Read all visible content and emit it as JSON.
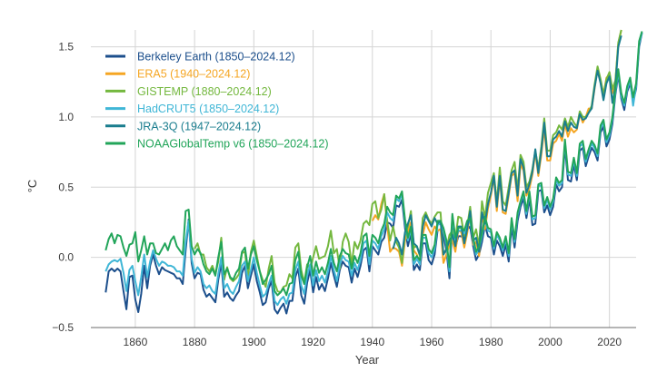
{
  "chart_data": {
    "type": "line",
    "xlabel": "Year",
    "ylabel": "°C",
    "xlim": [
      1845,
      2029
    ],
    "ylim": [
      -0.5,
      1.62
    ],
    "xticks": [
      1860,
      1880,
      1900,
      1920,
      1940,
      1960,
      1980,
      2000,
      2020
    ],
    "yticks": [
      -0.5,
      0.0,
      0.5,
      1.0,
      1.5
    ],
    "ytick_labels": [
      "−0.5",
      "0.0",
      "0.5",
      "1.0",
      "1.5"
    ],
    "grid": "vertical and horizontal",
    "legend": "top-left",
    "series": [
      {
        "name": "Berkeley Earth (1850–2024.12)",
        "color": "#1c4f8c",
        "start": 1850,
        "values": [
          -0.25,
          -0.1,
          -0.08,
          -0.1,
          -0.08,
          -0.1,
          -0.24,
          -0.37,
          -0.14,
          -0.13,
          -0.3,
          -0.39,
          -0.26,
          -0.06,
          -0.22,
          -0.06,
          0.02,
          -0.06,
          -0.12,
          -0.07,
          -0.09,
          -0.1,
          -0.11,
          -0.12,
          -0.15,
          -0.15,
          -0.19,
          0.05,
          0.27,
          -0.04,
          -0.15,
          -0.11,
          -0.12,
          -0.23,
          -0.28,
          -0.26,
          -0.29,
          -0.32,
          -0.16,
          -0.04,
          -0.28,
          -0.25,
          -0.29,
          -0.31,
          -0.27,
          -0.24,
          -0.11,
          -0.06,
          -0.22,
          -0.13,
          -0.05,
          -0.17,
          -0.25,
          -0.34,
          -0.32,
          -0.22,
          -0.17,
          -0.37,
          -0.4,
          -0.36,
          -0.33,
          -0.4,
          -0.31,
          -0.31,
          -0.14,
          -0.08,
          -0.27,
          -0.33,
          -0.18,
          -0.09,
          -0.25,
          -0.14,
          -0.23,
          -0.19,
          -0.24,
          -0.15,
          -0.04,
          -0.13,
          -0.21,
          -0.09,
          -0.03,
          -0.06,
          -0.07,
          -0.18,
          -0.08,
          -0.14,
          -0.06,
          0.05,
          0.07,
          -0.1,
          0.08,
          0.05,
          0.02,
          0.11,
          0.14,
          0.25,
          0.24,
          0.21,
          0.37,
          0.36,
          0.41,
          0.21,
          0.08,
          0.17,
          -0.09,
          -0.05,
          -0.09,
          0.1,
          0.1,
          -0.02,
          -0.05,
          0.02,
          0.19,
          0.2,
          0.15,
          0.05,
          -0.15,
          0.25,
          0.07,
          0.15,
          0.15,
          0.13,
          0.2,
          0.22,
          0.08,
          -0.02,
          0.02,
          0.11,
          0.23,
          0.15,
          0.14,
          0.02,
          0.12,
          0.08,
          0.01,
          0.09,
          -0.03,
          0.22,
          0.07,
          0.26,
          0.36,
          0.42,
          0.28,
          0.42,
          0.23,
          0.24,
          0.47,
          0.48,
          0.32,
          0.37,
          0.3,
          0.36,
          0.52,
          0.47,
          0.5,
          0.79,
          0.55,
          0.54,
          0.66,
          0.55,
          0.76,
          0.78,
          0.65,
          0.72,
          0.78,
          0.75,
          0.69,
          0.89,
          0.93,
          0.79,
          0.84,
          0.95,
          1.16,
          1.3,
          1.13,
          1.05,
          1.18,
          1.24,
          1.11,
          1.2,
          1.5,
          1.6
        ]
      },
      {
        "name": "ERA5 (1940–2024.12)",
        "color": "#f5a623",
        "start": 1940,
        "values": [
          0.26,
          0.3,
          0.27,
          0.38,
          0.45,
          0.23,
          0.04,
          0.07,
          0.06,
          0.04,
          -0.06,
          0.12,
          0.18,
          0.25,
          0.05,
          0.02,
          -0.05,
          0.16,
          0.25,
          0.2,
          0.16,
          0.22,
          0.19,
          0.2,
          -0.04,
          0.02,
          0.09,
          0.12,
          0.04,
          0.19,
          0.18,
          0.07,
          0.17,
          0.31,
          0.09,
          0.11,
          0.01,
          0.3,
          0.2,
          0.35,
          0.44,
          0.57,
          0.33,
          0.56,
          0.32,
          0.31,
          0.44,
          0.58,
          0.6,
          0.4,
          0.66,
          0.62,
          0.44,
          0.49,
          0.59,
          0.75,
          0.58,
          0.73,
          0.92,
          0.69,
          0.69,
          0.81,
          0.83,
          0.88,
          0.83,
          0.95,
          0.86,
          0.92,
          0.89,
          0.91,
          1.02,
          0.96,
          1.0,
          1.06,
          1.06,
          1.2,
          1.35,
          1.26,
          1.16,
          1.28,
          1.3,
          1.17,
          1.25,
          1.52,
          1.62
        ]
      },
      {
        "name": "GISTEMP (1880–2024.12)",
        "color": "#74b83f",
        "start": 1880,
        "values": [
          0.06,
          0.1,
          0.02,
          0.02,
          -0.07,
          -0.1,
          -0.06,
          -0.12,
          -0.03,
          0.14,
          -0.16,
          -0.07,
          -0.15,
          -0.17,
          -0.15,
          -0.12,
          0.03,
          0.04,
          -0.15,
          0.04,
          0.12,
          0.01,
          -0.1,
          -0.16,
          -0.21,
          -0.08,
          0.01,
          -0.18,
          -0.24,
          -0.25,
          -0.21,
          -0.2,
          -0.12,
          -0.15,
          0.07,
          0.1,
          -0.09,
          -0.18,
          -0.05,
          -0.08,
          0.0,
          0.08,
          -0.01,
          0.0,
          0.01,
          0.08,
          0.19,
          0.03,
          0.06,
          -0.08,
          0.11,
          0.17,
          0.11,
          -0.05,
          0.11,
          0.06,
          0.12,
          0.24,
          0.26,
          0.23,
          0.38,
          0.4,
          0.28,
          0.34,
          0.45,
          0.26,
          0.12,
          0.22,
          0.11,
          0.07,
          -0.04,
          0.16,
          0.22,
          0.33,
          0.07,
          0.08,
          0.01,
          0.28,
          0.32,
          0.27,
          0.24,
          0.29,
          0.32,
          0.32,
          0.02,
          0.06,
          0.16,
          0.19,
          0.13,
          0.29,
          0.28,
          0.15,
          0.22,
          0.36,
          0.14,
          0.2,
          0.08,
          0.4,
          0.28,
          0.46,
          0.53,
          0.6,
          0.39,
          0.64,
          0.4,
          0.37,
          0.5,
          0.62,
          0.68,
          0.48,
          0.73,
          0.68,
          0.5,
          0.54,
          0.63,
          0.76,
          0.63,
          0.79,
          0.99,
          0.76,
          0.76,
          0.87,
          0.89,
          0.94,
          0.91,
          0.99,
          0.93,
          1.0,
          0.96,
          0.93,
          1.04,
          1.0,
          1.0,
          1.03,
          1.08,
          1.23,
          1.36,
          1.27,
          1.16,
          1.27,
          1.32,
          1.2,
          1.26,
          1.53,
          1.62
        ]
      },
      {
        "name": "HadCRUT5 (1850–2024.12)",
        "color": "#3fb6d6",
        "start": 1850,
        "values": [
          -0.1,
          -0.05,
          -0.03,
          -0.02,
          -0.03,
          -0.01,
          -0.11,
          -0.24,
          -0.09,
          -0.06,
          -0.17,
          -0.27,
          -0.14,
          0.02,
          -0.14,
          -0.03,
          0.05,
          -0.01,
          -0.06,
          -0.03,
          -0.04,
          -0.06,
          -0.06,
          -0.07,
          -0.1,
          -0.1,
          -0.13,
          0.11,
          0.26,
          -0.01,
          -0.11,
          -0.07,
          -0.1,
          -0.19,
          -0.22,
          -0.2,
          -0.24,
          -0.26,
          -0.12,
          0.0,
          -0.22,
          -0.19,
          -0.24,
          -0.26,
          -0.21,
          -0.17,
          -0.06,
          -0.03,
          -0.17,
          -0.09,
          0.0,
          -0.11,
          -0.2,
          -0.28,
          -0.26,
          -0.19,
          -0.13,
          -0.31,
          -0.34,
          -0.3,
          -0.28,
          -0.33,
          -0.26,
          -0.25,
          -0.09,
          -0.03,
          -0.2,
          -0.26,
          -0.13,
          -0.05,
          -0.2,
          -0.09,
          -0.17,
          -0.13,
          -0.18,
          -0.1,
          0.01,
          -0.09,
          -0.17,
          -0.05,
          0.01,
          -0.02,
          -0.03,
          -0.13,
          -0.04,
          -0.09,
          -0.02,
          0.1,
          0.12,
          -0.05,
          0.12,
          0.1,
          0.06,
          0.15,
          0.2,
          0.32,
          0.28,
          0.26,
          0.42,
          0.4,
          0.45,
          0.25,
          0.12,
          0.2,
          -0.05,
          -0.01,
          -0.05,
          0.14,
          0.14,
          0.03,
          0.0,
          0.06,
          0.23,
          0.24,
          0.19,
          0.09,
          -0.1,
          0.29,
          0.11,
          0.19,
          0.19,
          0.17,
          0.24,
          0.26,
          0.12,
          0.02,
          0.06,
          0.15,
          0.27,
          0.19,
          0.18,
          0.06,
          0.16,
          0.12,
          0.05,
          0.13,
          0.01,
          0.26,
          0.11,
          0.3,
          0.39,
          0.45,
          0.31,
          0.46,
          0.27,
          0.28,
          0.51,
          0.51,
          0.35,
          0.41,
          0.34,
          0.4,
          0.55,
          0.51,
          0.53,
          0.82,
          0.59,
          0.58,
          0.69,
          0.58,
          0.79,
          0.81,
          0.68,
          0.75,
          0.81,
          0.78,
          0.72,
          0.92,
          0.96,
          0.82,
          0.87,
          0.98,
          1.18,
          1.32,
          1.15,
          1.08,
          1.2,
          1.26,
          1.08,
          1.22,
          1.52,
          1.6
        ]
      },
      {
        "name": "JRA-3Q (1947–2024.12)",
        "color": "#1a7d8e",
        "start": 1947,
        "values": [
          0.06,
          0.14,
          0.1,
          0.02,
          0.18,
          0.24,
          0.3,
          0.1,
          0.08,
          0.02,
          0.22,
          0.3,
          0.26,
          0.22,
          0.28,
          0.24,
          0.26,
          0.02,
          0.06,
          0.12,
          0.16,
          0.08,
          0.22,
          0.22,
          0.1,
          0.2,
          0.33,
          0.12,
          0.14,
          0.04,
          0.32,
          0.24,
          0.38,
          0.46,
          0.58,
          0.36,
          0.58,
          0.34,
          0.33,
          0.46,
          0.6,
          0.62,
          0.44,
          0.7,
          0.64,
          0.46,
          0.52,
          0.61,
          0.77,
          0.6,
          0.76,
          0.96,
          0.72,
          0.72,
          0.84,
          0.86,
          0.9,
          0.86,
          0.97,
          0.9,
          0.96,
          0.93,
          0.92,
          1.02,
          0.98,
          0.99,
          1.03,
          1.06,
          1.21,
          1.33,
          1.24,
          1.12,
          1.24,
          1.29,
          1.1,
          1.22,
          1.5,
          1.58
        ]
      },
      {
        "name": "NOAAGlobalTemp v6 (1850–2024.12)",
        "color": "#22a55a",
        "start": 1850,
        "values": [
          0.05,
          0.13,
          0.17,
          0.1,
          0.16,
          0.15,
          0.07,
          0.01,
          0.09,
          0.1,
          0.18,
          -0.03,
          0.05,
          0.15,
          0.02,
          0.1,
          0.1,
          0.03,
          0.02,
          0.06,
          0.1,
          0.05,
          0.12,
          0.15,
          0.08,
          0.05,
          0.02,
          0.33,
          0.34,
          0.08,
          0.02,
          0.06,
          0.03,
          -0.05,
          -0.1,
          -0.12,
          -0.08,
          -0.13,
          0.0,
          0.11,
          -0.12,
          -0.08,
          -0.14,
          -0.16,
          -0.11,
          -0.08,
          0.04,
          0.07,
          -0.08,
          0.02,
          0.08,
          -0.02,
          -0.1,
          -0.19,
          -0.16,
          -0.12,
          -0.06,
          -0.24,
          -0.27,
          -0.25,
          -0.22,
          -0.27,
          -0.19,
          -0.18,
          -0.02,
          0.04,
          -0.13,
          -0.19,
          -0.07,
          0.01,
          -0.13,
          -0.03,
          -0.11,
          -0.07,
          -0.12,
          -0.04,
          0.06,
          -0.04,
          -0.1,
          0.01,
          0.06,
          0.03,
          0.02,
          -0.08,
          0.01,
          -0.04,
          0.03,
          0.15,
          0.17,
          0.01,
          0.16,
          0.14,
          0.1,
          0.19,
          0.24,
          0.36,
          0.32,
          0.3,
          0.44,
          0.42,
          0.47,
          0.27,
          0.14,
          0.22,
          -0.02,
          0.01,
          -0.02,
          0.16,
          0.16,
          0.06,
          0.03,
          0.09,
          0.26,
          0.26,
          0.21,
          0.12,
          -0.07,
          0.31,
          0.14,
          0.21,
          0.21,
          0.19,
          0.26,
          0.28,
          0.14,
          0.04,
          0.08,
          0.17,
          0.29,
          0.21,
          0.2,
          0.08,
          0.18,
          0.14,
          0.07,
          0.15,
          0.03,
          0.28,
          0.13,
          0.32,
          0.4,
          0.47,
          0.33,
          0.47,
          0.29,
          0.3,
          0.52,
          0.53,
          0.37,
          0.43,
          0.36,
          0.42,
          0.57,
          0.53,
          0.55,
          0.84,
          0.61,
          0.6,
          0.71,
          0.6,
          0.81,
          0.83,
          0.7,
          0.77,
          0.83,
          0.8,
          0.74,
          0.94,
          0.98,
          0.84,
          0.89,
          1.0,
          1.2,
          1.34,
          1.17,
          1.1,
          1.22,
          1.28,
          1.14,
          1.24,
          1.54,
          1.61
        ]
      }
    ]
  }
}
